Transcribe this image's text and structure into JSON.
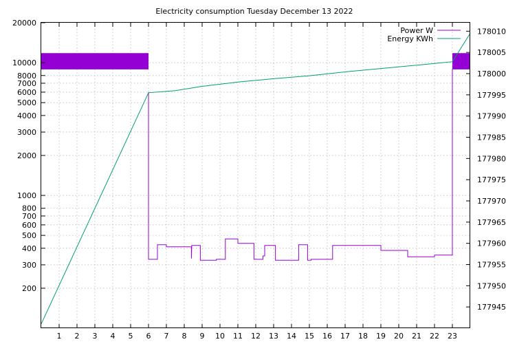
{
  "chart_data": {
    "type": "line",
    "title": "Electricity consumption Tuesday December 13 2022",
    "xlabel": "",
    "ylabel": "",
    "y2label": "",
    "grid": true,
    "legend_position": "top-right",
    "xlim": [
      0,
      24
    ],
    "ylim": [
      100,
      20000
    ],
    "y_scale": "log",
    "y2lim": [
      177940,
      178012
    ],
    "x_ticks": [
      1,
      2,
      3,
      4,
      5,
      6,
      7,
      8,
      9,
      10,
      11,
      12,
      13,
      14,
      15,
      16,
      17,
      18,
      19,
      20,
      21,
      22,
      23
    ],
    "x_tick_labels": [
      "1",
      "2",
      "3",
      "4",
      "5",
      "6",
      "7",
      "8",
      "9",
      "10",
      "11",
      "12",
      "13",
      "14",
      "15",
      "16",
      "17",
      "18",
      "19",
      "20",
      "21",
      "22",
      "23"
    ],
    "y_ticks": [
      200,
      300,
      400,
      500,
      600,
      700,
      800,
      1000,
      2000,
      3000,
      4000,
      5000,
      6000,
      7000,
      8000,
      10000,
      20000
    ],
    "y_tick_labels": [
      "200",
      "300",
      "400",
      "500",
      "600",
      "700",
      "800",
      "1000",
      "2000",
      "3000",
      "4000",
      "5000",
      "6000",
      "7000",
      "8000",
      "10000",
      "20000"
    ],
    "y2_ticks": [
      177945,
      177950,
      177955,
      177960,
      177965,
      177970,
      177975,
      177980,
      177985,
      177990,
      177995,
      178000,
      178005,
      178010
    ],
    "y2_tick_labels": [
      "177945",
      "177950",
      "177955",
      "177960",
      "177965",
      "177970",
      "177975",
      "177980",
      "177985",
      "177990",
      "177995",
      "178000",
      "178005",
      "178010"
    ],
    "series": [
      {
        "name": "Power W",
        "color": "#9400d3",
        "axis": "y",
        "bands": [
          {
            "x0": 0,
            "x1": 6,
            "ymin": 8900,
            "ymax": 11800
          },
          {
            "x0": 23,
            "x1": 24,
            "ymin": 8900,
            "ymax": 11800
          }
        ],
        "x": [
          6,
          6,
          6.5,
          6.5,
          7,
          7,
          8.4,
          8.4,
          8.42,
          8.42,
          8.9,
          8.9,
          9.8,
          9.8,
          10.3,
          10.3,
          11,
          11,
          11.9,
          11.9,
          12.4,
          12.4,
          12.5,
          12.5,
          13.1,
          13.1,
          14.4,
          14.4,
          14.9,
          14.9,
          15.1,
          15.1,
          16.3,
          16.3,
          19,
          19,
          20.5,
          20.5,
          22,
          22,
          23,
          23
        ],
        "values": [
          6000,
          330,
          330,
          425,
          425,
          410,
          410,
          335,
          410,
          420,
          420,
          325,
          325,
          330,
          330,
          470,
          470,
          435,
          435,
          330,
          330,
          350,
          350,
          420,
          420,
          325,
          325,
          425,
          425,
          325,
          325,
          330,
          330,
          420,
          420,
          385,
          385,
          345,
          345,
          355,
          355,
          9000
        ]
      },
      {
        "name": "Energy KWh",
        "color": "#009e73",
        "axis": "y2",
        "x": [
          0,
          6,
          7.5,
          9,
          11,
          13,
          15,
          17,
          19,
          21,
          23,
          24
        ],
        "values": [
          177941,
          177995.5,
          177996,
          177997,
          177998,
          177998.8,
          177999.5,
          178000.4,
          178001.2,
          178002,
          178002.8,
          178009.5
        ]
      }
    ]
  }
}
